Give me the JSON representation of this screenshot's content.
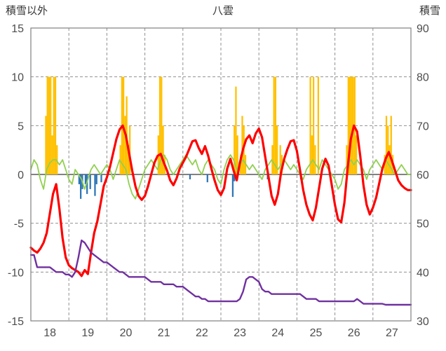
{
  "header": {
    "left_label": "積雪以外",
    "title": "八雲",
    "right_label": "積雪"
  },
  "chart_data": {
    "type": "line",
    "title": "八雲",
    "left_axis": {
      "label": "積雪以外",
      "min": -15,
      "max": 15,
      "ticks": [
        15,
        10,
        5,
        0,
        -5,
        -10,
        -15
      ]
    },
    "right_axis": {
      "label": "積雪",
      "min": 30,
      "max": 90,
      "ticks": [
        90,
        80,
        70,
        60,
        50,
        40,
        30
      ]
    },
    "x_axis": {
      "labels": [
        "18",
        "19",
        "20",
        "21",
        "22",
        "23",
        "24",
        "25",
        "26",
        "27"
      ],
      "hours_per_day": 24,
      "total_hours": 240
    },
    "grid": {
      "horizontal_dashed_at": [
        10,
        5,
        -5,
        -10
      ],
      "vertical_dashed_every_hours": 24,
      "zero_line": true
    },
    "colors": {
      "sunshine": "#FFC000",
      "precipitation": "#2E75B6",
      "wind": "#92D050",
      "temperature": "#FF0000",
      "snow": "#7030A0",
      "grid": "#909090",
      "zero_line": "#595959",
      "border": "#808080",
      "tick_text": "#4d4d4d",
      "title_text": "#333333",
      "background": "#ffffff"
    },
    "series": {
      "sunshine_bars": [
        [
          9,
          6
        ],
        [
          10,
          10
        ],
        [
          11,
          10
        ],
        [
          12,
          10
        ],
        [
          13,
          4
        ],
        [
          14,
          10
        ],
        [
          15,
          10
        ],
        [
          16,
          3
        ],
        [
          56,
          3
        ],
        [
          57,
          10
        ],
        [
          58,
          10
        ],
        [
          59,
          6
        ],
        [
          60,
          8
        ],
        [
          61,
          3
        ],
        [
          62,
          5
        ],
        [
          80,
          4
        ],
        [
          81,
          10
        ],
        [
          82,
          10
        ],
        [
          83,
          5
        ],
        [
          84,
          2
        ],
        [
          128,
          5
        ],
        [
          129,
          9
        ],
        [
          130,
          4
        ],
        [
          132,
          2
        ],
        [
          133,
          6
        ],
        [
          134,
          5
        ],
        [
          135,
          2
        ],
        [
          152,
          3
        ],
        [
          153,
          10
        ],
        [
          154,
          10
        ],
        [
          155,
          5
        ],
        [
          157,
          3
        ],
        [
          158,
          2
        ],
        [
          176,
          10
        ],
        [
          177,
          4
        ],
        [
          178,
          10
        ],
        [
          179,
          3
        ],
        [
          181,
          10
        ],
        [
          199,
          3
        ],
        [
          200,
          10
        ],
        [
          201,
          10
        ],
        [
          202,
          10
        ],
        [
          203,
          10
        ],
        [
          204,
          10
        ],
        [
          205,
          4
        ],
        [
          223,
          2
        ],
        [
          224,
          6
        ],
        [
          225,
          5
        ],
        [
          226,
          3
        ],
        [
          227,
          6
        ],
        [
          228,
          2
        ]
      ],
      "precip_bars": [
        [
          30,
          -1
        ],
        [
          31,
          -2.5
        ],
        [
          32,
          -1.5
        ],
        [
          34,
          -1
        ],
        [
          35,
          -2
        ],
        [
          37,
          -1.5
        ],
        [
          40,
          -2.2
        ],
        [
          41,
          -1
        ],
        [
          44,
          -0.8
        ],
        [
          100,
          -0.5
        ],
        [
          111,
          -0.8
        ],
        [
          127,
          -2.3
        ],
        [
          128,
          -0.7
        ],
        [
          149,
          -0.5
        ],
        [
          170,
          -0.5
        ]
      ],
      "wind": {
        "axis": "left",
        "step_hours": 2,
        "values": [
          0.5,
          1.5,
          1.0,
          -0.5,
          -1.5,
          0.5,
          1.2,
          1.5,
          1.5,
          1.0,
          1.5,
          0.5,
          -0.5,
          -1.0,
          0.5,
          0.0,
          -0.5,
          -1.5,
          -0.5,
          0.5,
          1.0,
          0.5,
          0.0,
          0.5,
          1.0,
          0.5,
          -0.5,
          0.5,
          1.5,
          1.0,
          0.5,
          -1.0,
          -2.0,
          -2.5,
          -1.5,
          -0.5,
          0.5,
          1.0,
          1.5,
          1.0,
          0.5,
          1.5,
          2.0,
          1.5,
          0.5,
          0.0,
          0.5,
          1.0,
          1.5,
          2.0,
          1.5,
          1.0,
          1.5,
          0.5,
          0.0,
          1.0,
          1.5,
          1.0,
          0.5,
          -0.5,
          -1.0,
          0.5,
          1.5,
          2.0,
          1.5,
          0.5,
          1.0,
          1.5,
          1.0,
          0.5,
          1.0,
          0.5,
          0.0,
          -0.5,
          0.5,
          1.0,
          1.5,
          1.0,
          0.5,
          1.0,
          1.5,
          1.0,
          0.5,
          1.0,
          0.5,
          0.0,
          -0.5,
          0.5,
          1.0,
          1.5,
          1.0,
          0.5,
          1.5,
          1.0,
          0.5,
          0.0,
          -0.5,
          -1.5,
          -1.0,
          0.5,
          1.0,
          1.5,
          1.0,
          1.5,
          1.0,
          0.5,
          -0.5,
          0.5,
          1.0,
          1.5,
          1.0,
          0.5,
          1.5,
          1.0,
          0.5,
          0.0,
          0.5,
          1.0,
          0.5,
          0.0,
          0.0
        ]
      },
      "temperature": {
        "axis": "left",
        "step_hours": 2,
        "values": [
          -7.5,
          -7.8,
          -8.0,
          -7.6,
          -7.0,
          -6.0,
          -4.0,
          -2.0,
          -1.0,
          -3.5,
          -6.5,
          -8.5,
          -9.3,
          -9.6,
          -9.8,
          -10.0,
          -10.4,
          -9.8,
          -10.2,
          -8.0,
          -6.0,
          -4.8,
          -3.0,
          -1.2,
          -0.3,
          0.8,
          2.2,
          3.6,
          4.6,
          5.0,
          4.0,
          2.2,
          0.4,
          -1.2,
          -2.2,
          -2.6,
          -2.2,
          -1.2,
          0.0,
          1.2,
          1.9,
          2.1,
          1.2,
          0.4,
          -0.6,
          -1.1,
          -0.4,
          0.6,
          1.2,
          1.8,
          2.6,
          3.4,
          3.5,
          2.7,
          2.1,
          2.9,
          1.9,
          0.6,
          -0.6,
          -1.6,
          -2.1,
          -1.4,
          0.6,
          1.6,
          0.4,
          -0.6,
          1.2,
          2.6,
          3.6,
          4.0,
          3.2,
          4.2,
          4.7,
          3.8,
          1.8,
          -0.2,
          -2.2,
          -3.1,
          -2.0,
          0.2,
          1.6,
          2.6,
          3.4,
          3.5,
          2.4,
          0.4,
          -1.6,
          -3.1,
          -4.1,
          -4.7,
          -3.4,
          -1.4,
          0.6,
          1.6,
          0.9,
          -1.1,
          -3.1,
          -4.6,
          -4.9,
          -2.9,
          0.6,
          3.6,
          5.0,
          4.4,
          1.9,
          -1.1,
          -3.1,
          -4.1,
          -3.4,
          -2.4,
          -0.9,
          0.6,
          1.6,
          2.3,
          1.4,
          0.4,
          -0.6,
          -1.1,
          -1.4,
          -1.6,
          -1.6
        ]
      },
      "snow_depth": {
        "axis": "right",
        "step_hours": 2,
        "values": [
          43.5,
          43.5,
          41,
          41,
          41,
          41,
          41,
          40.5,
          40,
          40,
          40,
          39.5,
          39.5,
          39,
          40,
          43,
          46.5,
          46,
          45,
          44,
          43.5,
          43,
          42.5,
          42,
          42,
          41.5,
          41,
          40.5,
          40,
          40,
          39.5,
          39,
          39,
          39,
          39,
          39,
          39,
          38.5,
          38,
          38,
          38,
          38,
          37.5,
          37.5,
          37.5,
          37.5,
          37,
          37,
          37,
          36.5,
          36,
          35.5,
          35,
          35,
          34.5,
          34.5,
          34,
          34,
          34,
          34,
          34,
          34,
          34,
          34,
          34,
          34,
          34.5,
          36,
          38.5,
          39,
          39,
          38.5,
          38,
          36.5,
          36,
          36,
          35.5,
          35.5,
          35.5,
          35.5,
          35.5,
          35.5,
          35.5,
          35.5,
          35.5,
          35.5,
          35,
          34.5,
          34.5,
          34.5,
          34.5,
          34,
          34,
          34,
          34,
          34,
          34,
          34,
          34,
          34,
          34,
          34,
          34,
          34.5,
          34,
          33.5,
          33.5,
          33.5,
          33.5,
          33.5,
          33.5,
          33.5,
          33.3,
          33.3,
          33.3,
          33.3,
          33.3,
          33.3,
          33.3,
          33.3,
          33.3
        ]
      }
    }
  }
}
